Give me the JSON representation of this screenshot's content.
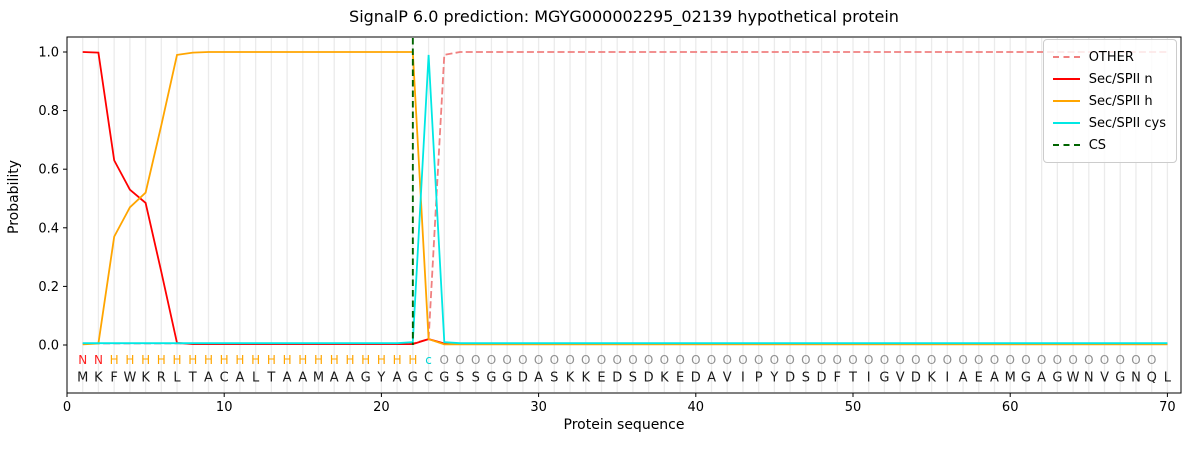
{
  "title": "SignalP 6.0 prediction: MGYG000002295_02139 hypothetical protein",
  "axes": {
    "xlabel": "Protein sequence",
    "ylabel": "Probability",
    "x_ticks": [
      0,
      10,
      20,
      30,
      40,
      50,
      60,
      70
    ],
    "y_ticks": [
      0.0,
      0.2,
      0.4,
      0.6,
      0.8,
      1.0
    ]
  },
  "legend": {
    "items": [
      {
        "label": "OTHER",
        "color": "#f08080",
        "style": "dashed"
      },
      {
        "label": "Sec/SPII n",
        "color": "#ff0000",
        "style": "solid"
      },
      {
        "label": "Sec/SPII h",
        "color": "#ffa500",
        "style": "solid"
      },
      {
        "label": "Sec/SPII cys",
        "color": "#00e8e4",
        "style": "solid"
      },
      {
        "label": "CS",
        "color": "#006400",
        "style": "dashed"
      }
    ]
  },
  "chart_data": {
    "type": "line",
    "title": "SignalP 6.0 prediction: MGYG000002295_02139 hypothetical protein",
    "xlabel": "Protein sequence",
    "ylabel": "Probability",
    "xlim": [
      0,
      71
    ],
    "ylim": [
      -0.165,
      1.05
    ],
    "x_ticks": [
      0,
      10,
      20,
      30,
      40,
      50,
      60,
      70
    ],
    "y_ticks": [
      0.0,
      0.2,
      0.4,
      0.6,
      0.8,
      1.0
    ],
    "grid": "vertical line at every residue position",
    "legend_position": "upper right",
    "x_start": 1,
    "x_step": 1,
    "series": [
      {
        "name": "OTHER",
        "color": "#f08080",
        "style": "dashed",
        "values": [
          0.005,
          0.005,
          0.005,
          0.005,
          0.005,
          0.005,
          0.005,
          0.005,
          0.005,
          0.005,
          0.005,
          0.005,
          0.005,
          0.005,
          0.005,
          0.005,
          0.005,
          0.005,
          0.005,
          0.005,
          0.005,
          0.005,
          0.02,
          0.99,
          1.0,
          1.0,
          1.0,
          1.0,
          1.0,
          1.0,
          1.0,
          1.0,
          1.0,
          1.0,
          1.0,
          1.0,
          1.0,
          1.0,
          1.0,
          1.0,
          1.0,
          1.0,
          1.0,
          1.0,
          1.0,
          1.0,
          1.0,
          1.0,
          1.0,
          1.0,
          1.0,
          1.0,
          1.0,
          1.0,
          1.0,
          1.0,
          1.0,
          1.0,
          1.0,
          1.0,
          1.0,
          1.0,
          1.0,
          1.0,
          1.0,
          1.0,
          1.0,
          1.0,
          1.0,
          1.0
        ]
      },
      {
        "name": "Sec/SPII n",
        "color": "#ff0000",
        "style": "solid",
        "values": [
          1.0,
          0.998,
          0.63,
          0.53,
          0.485,
          0.25,
          0.007,
          0.003,
          0.003,
          0.003,
          0.003,
          0.003,
          0.003,
          0.003,
          0.003,
          0.003,
          0.003,
          0.003,
          0.003,
          0.003,
          0.003,
          0.003,
          0.02,
          0.005,
          0.003,
          0.003,
          0.003,
          0.003,
          0.003,
          0.003,
          0.003,
          0.003,
          0.003,
          0.003,
          0.003,
          0.003,
          0.003,
          0.003,
          0.003,
          0.003,
          0.003,
          0.003,
          0.003,
          0.003,
          0.003,
          0.003,
          0.003,
          0.003,
          0.003,
          0.003,
          0.003,
          0.003,
          0.003,
          0.003,
          0.003,
          0.003,
          0.003,
          0.003,
          0.003,
          0.003,
          0.003,
          0.003,
          0.003,
          0.003,
          0.003,
          0.003,
          0.003,
          0.003,
          0.003,
          0.003
        ]
      },
      {
        "name": "Sec/SPII h",
        "color": "#ffa500",
        "style": "solid",
        "values": [
          0.002,
          0.005,
          0.37,
          0.47,
          0.52,
          0.75,
          0.99,
          0.998,
          1.0,
          1.0,
          1.0,
          1.0,
          1.0,
          1.0,
          1.0,
          1.0,
          1.0,
          1.0,
          1.0,
          1.0,
          1.0,
          1.0,
          0.02,
          0.002,
          0.002,
          0.002,
          0.002,
          0.002,
          0.002,
          0.002,
          0.002,
          0.002,
          0.002,
          0.002,
          0.002,
          0.002,
          0.002,
          0.002,
          0.002,
          0.002,
          0.002,
          0.002,
          0.002,
          0.002,
          0.002,
          0.002,
          0.002,
          0.002,
          0.002,
          0.002,
          0.002,
          0.002,
          0.002,
          0.002,
          0.002,
          0.002,
          0.002,
          0.002,
          0.002,
          0.002,
          0.002,
          0.002,
          0.002,
          0.002,
          0.002,
          0.002,
          0.002,
          0.002,
          0.002,
          0.002
        ]
      },
      {
        "name": "Sec/SPII cys",
        "color": "#00e8e4",
        "style": "solid",
        "values": [
          0.006,
          0.006,
          0.006,
          0.006,
          0.006,
          0.006,
          0.006,
          0.006,
          0.006,
          0.006,
          0.006,
          0.006,
          0.006,
          0.006,
          0.006,
          0.006,
          0.006,
          0.006,
          0.006,
          0.006,
          0.006,
          0.01,
          0.99,
          0.01,
          0.006,
          0.006,
          0.006,
          0.006,
          0.006,
          0.006,
          0.006,
          0.006,
          0.006,
          0.006,
          0.006,
          0.006,
          0.006,
          0.006,
          0.006,
          0.006,
          0.006,
          0.006,
          0.006,
          0.006,
          0.006,
          0.006,
          0.006,
          0.006,
          0.006,
          0.006,
          0.006,
          0.006,
          0.006,
          0.006,
          0.006,
          0.006,
          0.006,
          0.006,
          0.006,
          0.006,
          0.006,
          0.006,
          0.006,
          0.006,
          0.006,
          0.006,
          0.006,
          0.006,
          0.006,
          0.006
        ]
      }
    ],
    "cs_line": {
      "name": "CS",
      "position": 22,
      "color": "#006400",
      "style": "dashed"
    },
    "sequence": "MKFWKRLTACALTAAMAAGYAGCGSSGGDASKKEDSDKEDAVIPYDSDFTIGVDKIAEAMGAGWNVGNQL",
    "annotation": "NNHHHHHHHHHHHHHHHHHHHHcOOOOOOOOOOOOOOOOOOOOOOOOOOOOOOOOOOOOOOOOOOOOOO",
    "annotation_colors": {
      "N": "#ff2020",
      "H": "#ffa500",
      "c": "#00d5d5",
      "O": "#909090"
    },
    "sequence_color": "#1a1a1a"
  }
}
